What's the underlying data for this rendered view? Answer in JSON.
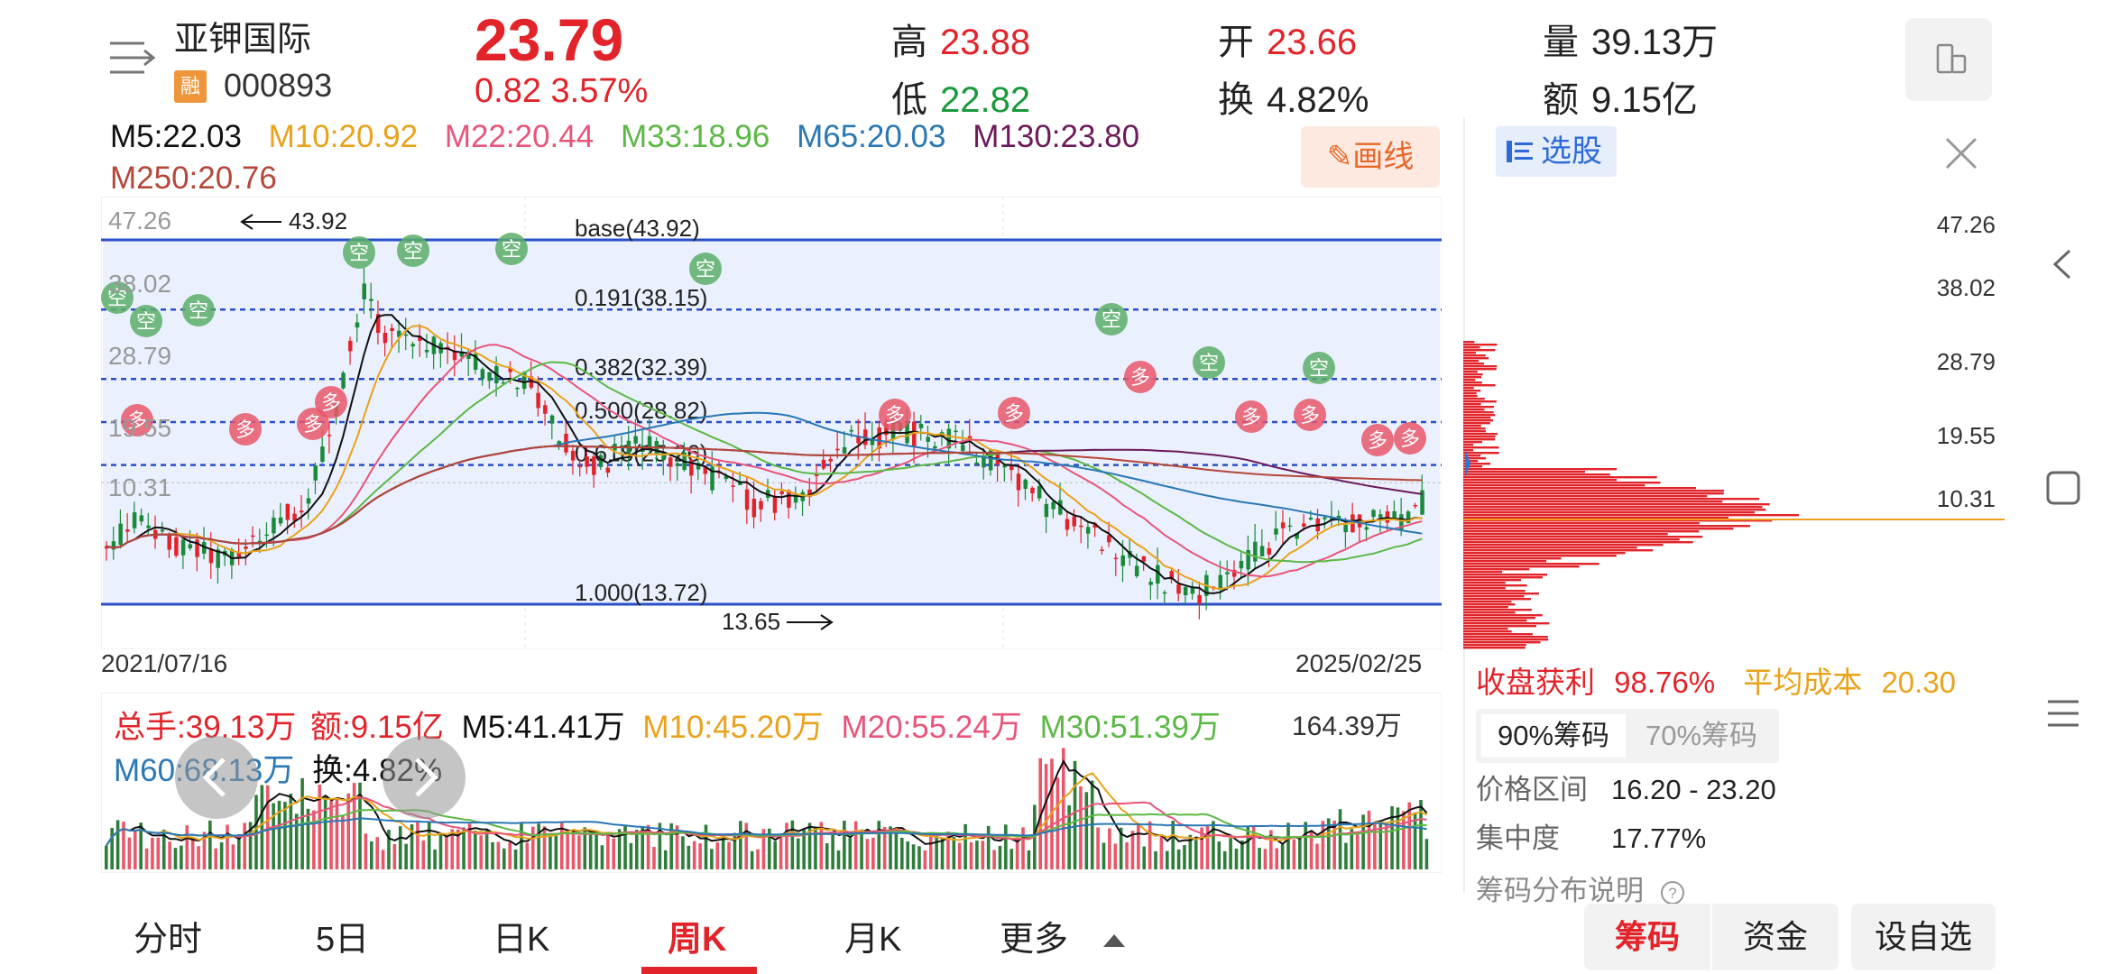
{
  "header": {
    "stock_name": "亚钾国际",
    "badge": "融",
    "code": "000893",
    "price": "23.79",
    "change": "0.82  3.57%",
    "high_label": "高",
    "high": "23.88",
    "low_label": "低",
    "low": "22.82",
    "open_label": "开",
    "open": "23.66",
    "turnover_label": "换",
    "turnover": "4.82%",
    "volume_label": "量",
    "volume": "39.13万",
    "amount_label": "额",
    "amount": "9.15亿"
  },
  "ma": {
    "m5": "M5:22.03",
    "m10": "M10:20.92",
    "m22": "M22:20.44",
    "m33": "M33:18.96",
    "m65": "M65:20.03",
    "m130": "M130:23.80",
    "m250": "M250:20.76",
    "colors": {
      "m5": "#111111",
      "m10": "#e9a21b",
      "m22": "#e8557a",
      "m33": "#5cb846",
      "m65": "#2a77b5",
      "m130": "#6b1a5a",
      "m250": "#b5473a"
    }
  },
  "draw_button": "画线",
  "chart": {
    "y_labels": [
      "47.26",
      "38.02",
      "28.79",
      "19.55",
      "10.31"
    ],
    "fib": [
      {
        "label": "base(43.92)",
        "value": 43.92
      },
      {
        "label": "0.191(38.15)",
        "value": 38.15
      },
      {
        "label": "0.382(32.39)",
        "value": 32.39
      },
      {
        "label": "0.500(28.82)",
        "value": 28.82
      },
      {
        "label": "0.618(25.26)",
        "value": 25.26
      },
      {
        "label": "1.000(13.72)",
        "value": 13.72
      }
    ],
    "high_annotation": "43.92",
    "low_annotation": "13.65",
    "date_start": "2021/07/16",
    "date_end": "2025/02/25",
    "buy_marker": "多",
    "sell_marker": "空"
  },
  "volume": {
    "total": "总手:39.13万",
    "amount": "额:9.15亿",
    "m5": "M5:41.41万",
    "m10": "M10:45.20万",
    "m20": "M20:55.24万",
    "m30": "M30:51.39万",
    "m60": "M60:68.13万",
    "turnover": "换:4.82%",
    "max": "164.39万"
  },
  "panel": {
    "xuangu": "选股",
    "y_labels": [
      "47.26",
      "38.02",
      "28.79",
      "19.55",
      "10.31"
    ],
    "profit_label": "收盘获利",
    "profit_value": "98.76%",
    "avg_cost_label": "平均成本",
    "avg_cost_value": "20.30",
    "tab_90": "90%筹码",
    "tab_70": "70%筹码",
    "price_range_label": "价格区间",
    "price_range_value": "16.20 - 23.20",
    "concentration_label": "集中度",
    "concentration_value": "17.77%",
    "explain": "筹码分布说明"
  },
  "tabs": [
    "分时",
    "5日",
    "日K",
    "周K",
    "月K",
    "更多"
  ],
  "bottom_buttons": [
    "筹码",
    "资金",
    "设自选"
  ]
}
